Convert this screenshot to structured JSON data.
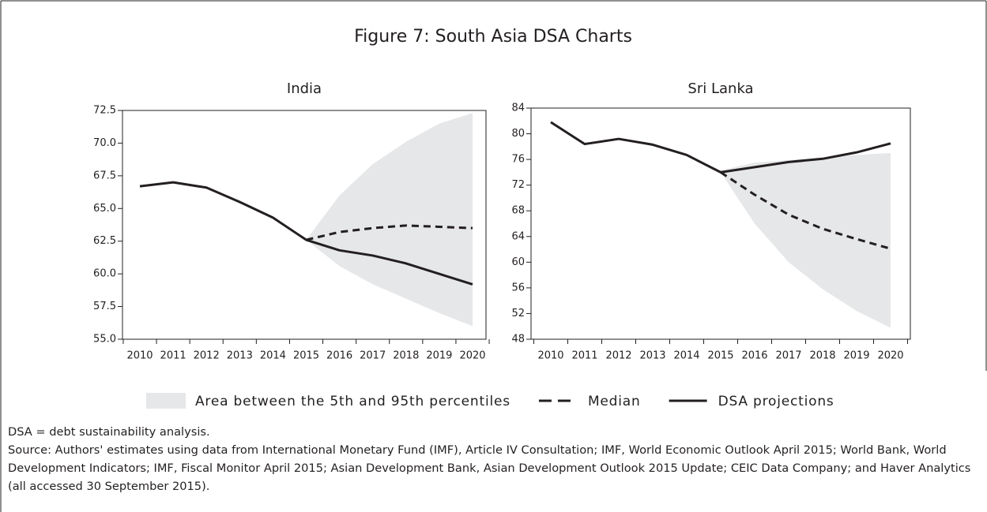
{
  "title": "Figure 7: South Asia DSA Charts",
  "chart_data": [
    {
      "type": "line",
      "title": "India",
      "categories": [
        "2010",
        "2011",
        "2012",
        "2013",
        "2014",
        "2015",
        "2016",
        "2017",
        "2018",
        "2019",
        "2020"
      ],
      "ylim": [
        55,
        72.5
      ],
      "yticks": [
        {
          "value": 55,
          "label": "55.0"
        },
        57.5,
        {
          "value": 60,
          "label": "60.0"
        },
        62.5,
        {
          "value": 65,
          "label": "65.0"
        },
        67.5,
        {
          "value": 70,
          "label": "70.0"
        },
        72.5
      ],
      "series": [
        {
          "name": "Area between the 5th and 95th percentiles",
          "color": "#e6e7e8",
          "style": "band",
          "lower": [
            null,
            null,
            null,
            null,
            null,
            62.6,
            60.6,
            59.2,
            58.1,
            57.0,
            56.0
          ],
          "upper": [
            null,
            null,
            null,
            null,
            null,
            62.6,
            66.0,
            68.4,
            70.1,
            71.5,
            72.3
          ]
        },
        {
          "name": "Median",
          "color": "#231f20",
          "dash": true,
          "values": [
            null,
            null,
            null,
            null,
            null,
            62.6,
            63.2,
            63.5,
            63.7,
            63.6,
            63.5
          ]
        },
        {
          "name": "DSA projections",
          "color": "#231f20",
          "values": [
            66.7,
            67.0,
            66.6,
            65.5,
            64.3,
            62.6,
            61.8,
            61.4,
            60.8,
            60.0,
            59.2
          ]
        }
      ]
    },
    {
      "type": "line",
      "title": "Sri Lanka",
      "categories": [
        "2010",
        "2011",
        "2012",
        "2013",
        "2014",
        "2015",
        "2016",
        "2017",
        "2018",
        "2019",
        "2020"
      ],
      "ylim": [
        48,
        84
      ],
      "yticks": [
        48,
        52,
        56,
        60,
        64,
        68,
        72,
        76,
        80,
        84
      ],
      "series": [
        {
          "name": "Area between the 5th and 95th percentiles",
          "color": "#e6e7e8",
          "style": "band",
          "lower": [
            null,
            null,
            null,
            null,
            null,
            74.0,
            66.0,
            60.0,
            55.8,
            52.4,
            49.8
          ],
          "upper": [
            null,
            null,
            null,
            null,
            null,
            74.3,
            75.5,
            75.9,
            76.3,
            76.7,
            77.0
          ]
        },
        {
          "name": "Median",
          "color": "#231f20",
          "dash": true,
          "values": [
            null,
            null,
            null,
            null,
            null,
            74.0,
            70.5,
            67.4,
            65.2,
            63.6,
            62.1
          ]
        },
        {
          "name": "DSA projections",
          "color": "#231f20",
          "values": [
            81.8,
            78.4,
            79.2,
            78.3,
            76.7,
            74.0,
            74.8,
            75.6,
            76.1,
            77.1,
            78.5
          ]
        }
      ]
    }
  ],
  "notes": [
    "DSA = debt sustainability analysis.",
    "Source: Authors' estimates using data from International Monetary Fund (IMF),  Article IV Consultation; IMF, World Economic Outlook April 2015; World Bank, World Development Indicators; IMF, Fiscal Monitor April 2015;  Asian Development Bank, Asian Development Outlook 2015 Update; CEIC Data Company; and Haver Analytics (all accessed 30 September 2015)."
  ]
}
